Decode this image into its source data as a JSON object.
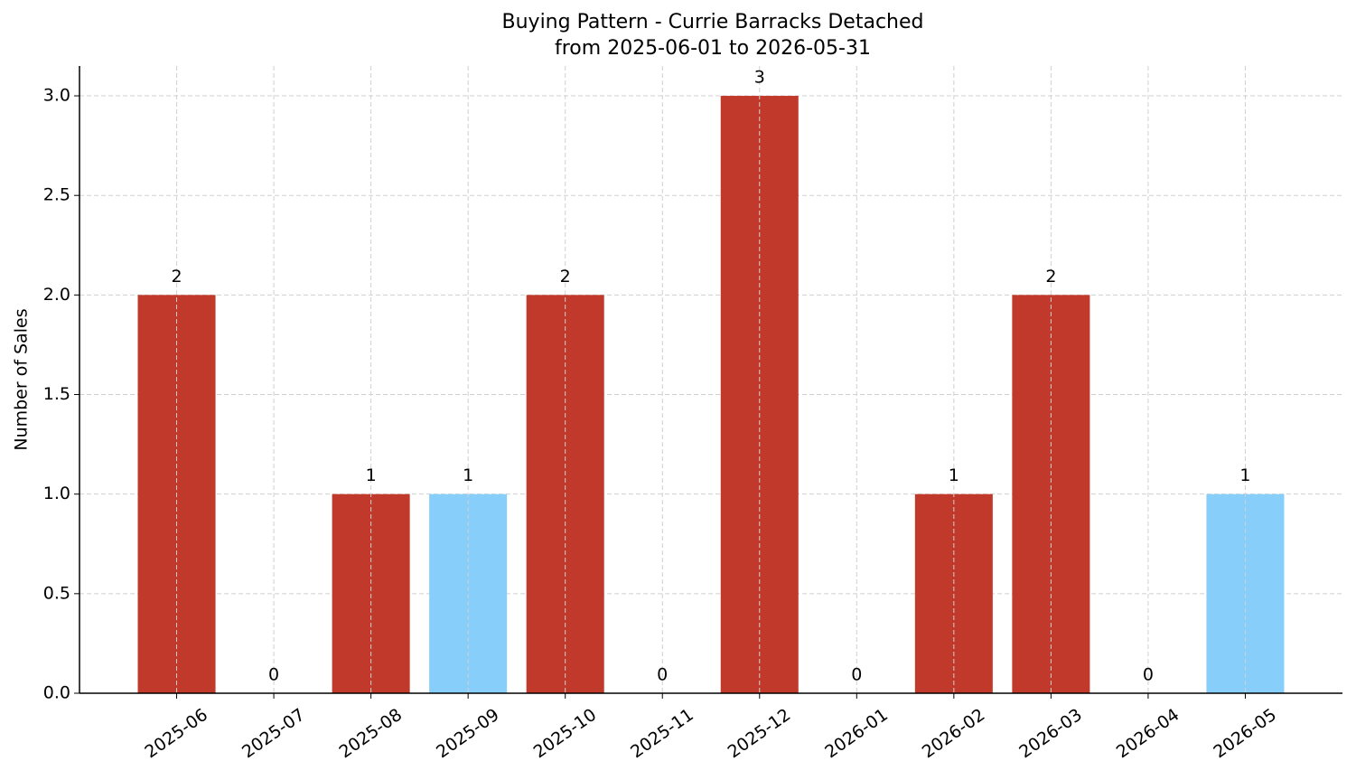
{
  "chart_data": {
    "type": "bar",
    "title": "Buying Pattern - Currie Barracks Detached",
    "subtitle": "from 2025-06-01 to 2026-05-31",
    "y_label": "Number of Sales",
    "categories": [
      "2025-06",
      "2025-07",
      "2025-08",
      "2025-09",
      "2025-10",
      "2025-11",
      "2025-12",
      "2026-01",
      "2026-02",
      "2026-03",
      "2026-04",
      "2026-05"
    ],
    "values": [
      2,
      0,
      1,
      1,
      2,
      0,
      3,
      0,
      1,
      2,
      0,
      1
    ],
    "colors": [
      "#c0392b",
      "#c0392b",
      "#c0392b",
      "#87cefa",
      "#c0392b",
      "#c0392b",
      "#c0392b",
      "#c0392b",
      "#c0392b",
      "#c0392b",
      "#c0392b",
      "#87cefa"
    ],
    "ylim": [
      0,
      3.15
    ],
    "yticks": [
      {
        "value": 0,
        "label": "0.0"
      },
      {
        "value": 0.5,
        "label": "0.5"
      },
      {
        "value": 1,
        "label": "1.0"
      },
      {
        "value": 1.5,
        "label": "1.5"
      },
      {
        "value": 2,
        "label": "2.0"
      },
      {
        "value": 2.5,
        "label": "2.5"
      },
      {
        "value": 3,
        "label": "3.0"
      }
    ],
    "grid": true
  }
}
